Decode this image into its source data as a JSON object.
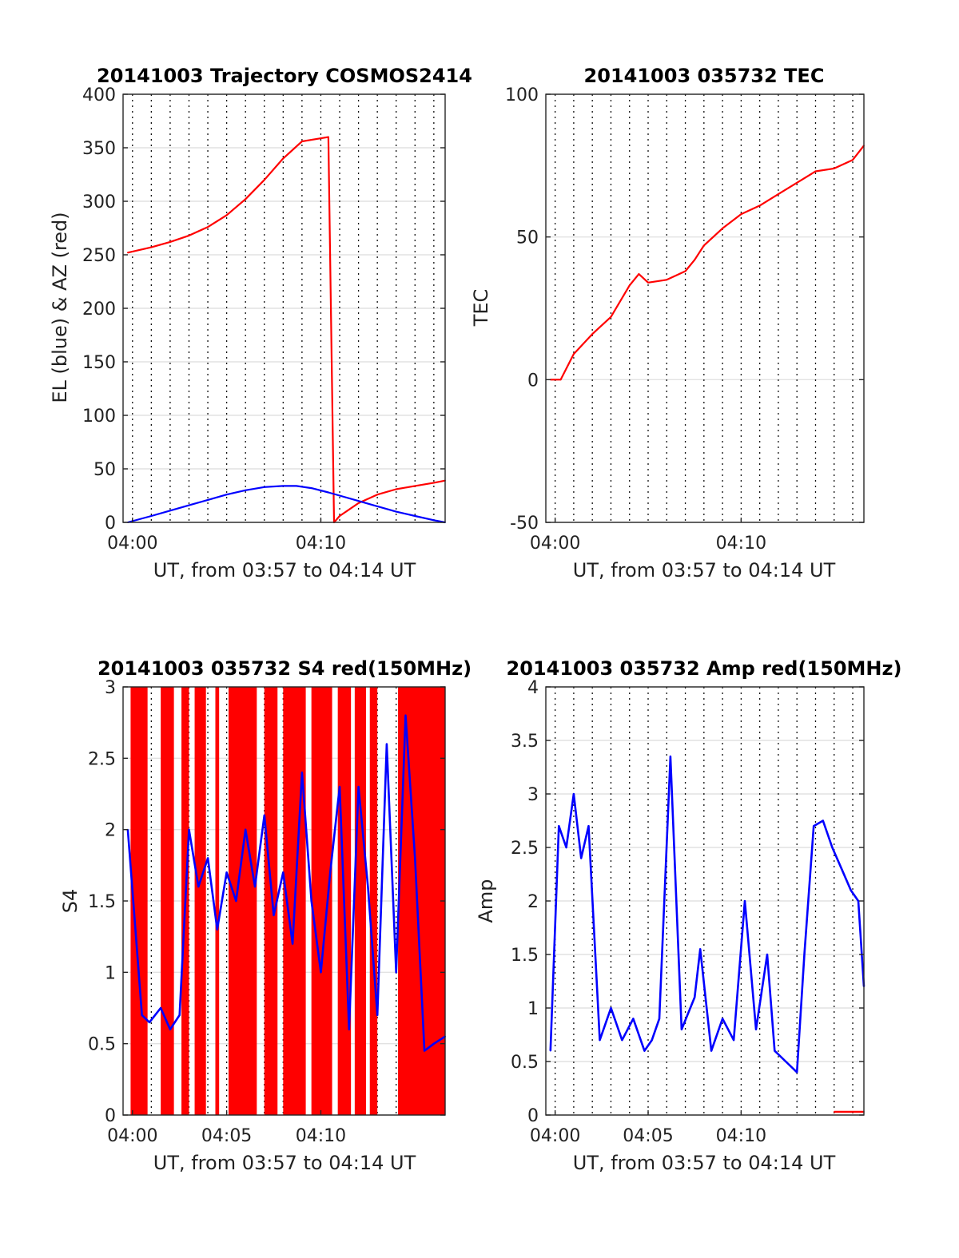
{
  "chart_data": [
    {
      "type": "line",
      "title": "20141003 Trajectory COSMOS2414",
      "xlabel": "UT, from 03:57 to 04:14 UT",
      "ylabel": "EL (blue) & AZ (red)",
      "xlim": [
        3.5,
        20.6
      ],
      "ylim": [
        0,
        400
      ],
      "yticks": [
        0,
        50,
        100,
        150,
        200,
        250,
        300,
        350,
        400
      ],
      "xticks": [
        {
          "value": 4,
          "label": "04:00"
        },
        {
          "value": 14,
          "label": "04:10"
        }
      ],
      "grid": "x dotted every minute, y solid",
      "series": [
        {
          "color": "#ff0000",
          "x": [
            3.75,
            5,
            6,
            7,
            8,
            9,
            10,
            11,
            12,
            13,
            14.4,
            14.7,
            15,
            16,
            17,
            18,
            19,
            20,
            20.6
          ],
          "y": [
            252,
            257,
            262,
            268,
            276,
            287,
            302,
            320,
            340,
            356,
            360,
            0,
            6,
            18,
            26,
            31,
            34,
            37,
            39
          ]
        },
        {
          "color": "#0000ff",
          "x": [
            3.75,
            5,
            6,
            7,
            8,
            9,
            10,
            11,
            12,
            12.7,
            13.5,
            14.4,
            15,
            16,
            17,
            18,
            19,
            20,
            20.6
          ],
          "y": [
            0,
            6,
            11,
            16,
            21,
            26,
            30,
            33,
            34,
            34,
            32,
            28,
            25,
            20,
            15,
            10,
            6,
            2,
            0
          ]
        }
      ]
    },
    {
      "type": "line",
      "title": "20141003 035732 TEC",
      "xlabel": "UT, from 03:57 to 04:14 UT",
      "ylabel": "TEC",
      "xlim": [
        3.5,
        20.6
      ],
      "ylim": [
        -50,
        100
      ],
      "yticks": [
        -50,
        0,
        50,
        100
      ],
      "xticks": [
        {
          "value": 4,
          "label": "04:00"
        },
        {
          "value": 14,
          "label": "04:10"
        }
      ],
      "grid": "x dotted every minute, y solid",
      "series": [
        {
          "color": "#ff0000",
          "x": [
            3.75,
            4.3,
            5,
            6,
            7,
            8,
            8.5,
            9,
            10,
            11,
            11.5,
            12,
            13,
            14,
            15,
            16,
            17,
            18,
            19,
            20,
            20.6
          ],
          "y": [
            0,
            0,
            9,
            16,
            22,
            33,
            37,
            34,
            35,
            38,
            42,
            47,
            53,
            58,
            61,
            65,
            69,
            73,
            74,
            77,
            82
          ]
        }
      ]
    },
    {
      "type": "area",
      "title": "20141003 035732 S4 red(150MHz)",
      "xlabel": "UT, from 03:57 to 04:14 UT",
      "ylabel": "S4",
      "xlim": [
        3.5,
        20.6
      ],
      "ylim": [
        0,
        3
      ],
      "yticks": [
        0,
        0.5,
        1,
        1.5,
        2,
        2.5,
        3
      ],
      "xticks": [
        {
          "value": 4,
          "label": "04:00"
        },
        {
          "value": 9,
          "label": "04:05"
        },
        {
          "value": 14,
          "label": "04:10"
        }
      ],
      "grid": "x dotted every minute, y solid",
      "series": [
        {
          "color": "#ff0000",
          "style": "vertical fill to top",
          "x": [
            3.9,
            4.8,
            5.5,
            6.2,
            6.6,
            7.0,
            7.3,
            7.9,
            8.4,
            8.6,
            9.1,
            10.6,
            11.0,
            11.7,
            12.0,
            13.2,
            13.5,
            14.6,
            14.9,
            15.6,
            15.8,
            16.4,
            16.6,
            17.0,
            18.1,
            20.6
          ],
          "y": [
            3,
            3,
            3,
            3,
            3,
            3,
            3,
            3,
            3,
            3,
            3,
            3,
            3,
            3,
            3,
            3,
            3,
            3,
            3,
            3,
            3,
            3,
            3,
            3,
            3,
            3
          ]
        },
        {
          "color": "#0000ff",
          "x": [
            3.75,
            4.1,
            4.5,
            4.9,
            5.5,
            6.0,
            6.5,
            7.0,
            7.5,
            8.0,
            8.5,
            9.0,
            9.5,
            10.0,
            10.5,
            11.0,
            11.5,
            12.0,
            12.5,
            13.0,
            13.5,
            14.0,
            14.5,
            15.0,
            15.5,
            16.0,
            16.5,
            17.0,
            17.5,
            18.0,
            18.5,
            19.0,
            19.5,
            20.0,
            20.6
          ],
          "y": [
            2.0,
            1.4,
            0.7,
            0.65,
            0.75,
            0.6,
            0.7,
            2.0,
            1.6,
            1.8,
            1.3,
            1.7,
            1.5,
            2.0,
            1.6,
            2.1,
            1.4,
            1.7,
            1.2,
            2.4,
            1.5,
            1.0,
            1.7,
            2.3,
            0.6,
            2.3,
            1.6,
            0.7,
            2.6,
            1.0,
            2.8,
            1.8,
            0.45,
            0.5,
            0.55
          ]
        }
      ]
    },
    {
      "type": "line",
      "title": "20141003 035732 Amp red(150MHz)",
      "xlabel": "UT, from 03:57 to 04:14 UT",
      "ylabel": "Amp",
      "xlim": [
        3.5,
        20.6
      ],
      "ylim": [
        0,
        4
      ],
      "yticks": [
        0,
        0.5,
        1,
        1.5,
        2,
        2.5,
        3,
        3.5,
        4
      ],
      "xticks": [
        {
          "value": 4,
          "label": "04:00"
        },
        {
          "value": 9,
          "label": "04:05"
        },
        {
          "value": 14,
          "label": "04:10"
        }
      ],
      "grid": "x dotted every minute, y solid",
      "series": [
        {
          "color": "#0000ff",
          "x": [
            3.75,
            4.2,
            4.6,
            5.0,
            5.4,
            5.8,
            6.4,
            7.0,
            7.6,
            8.2,
            8.8,
            9.2,
            9.6,
            10.2,
            10.8,
            11.5,
            11.8,
            12.4,
            13.0,
            13.6,
            14.2,
            14.8,
            15.4,
            15.8,
            16.4,
            17.0,
            17.4,
            17.9,
            18.4,
            18.9,
            19.4,
            19.9,
            20.3,
            20.6
          ],
          "y": [
            0.6,
            2.7,
            2.5,
            3.0,
            2.4,
            2.7,
            0.7,
            1.0,
            0.7,
            0.9,
            0.6,
            0.7,
            0.9,
            3.35,
            0.8,
            1.1,
            1.55,
            0.6,
            0.9,
            0.7,
            2.0,
            0.8,
            1.5,
            0.6,
            0.5,
            0.4,
            1.5,
            2.7,
            2.75,
            2.5,
            2.3,
            2.1,
            2.0,
            1.2
          ]
        },
        {
          "color": "#ff0000",
          "x": [
            19.0,
            20.6
          ],
          "y": [
            0.03,
            0.03
          ]
        }
      ]
    }
  ]
}
